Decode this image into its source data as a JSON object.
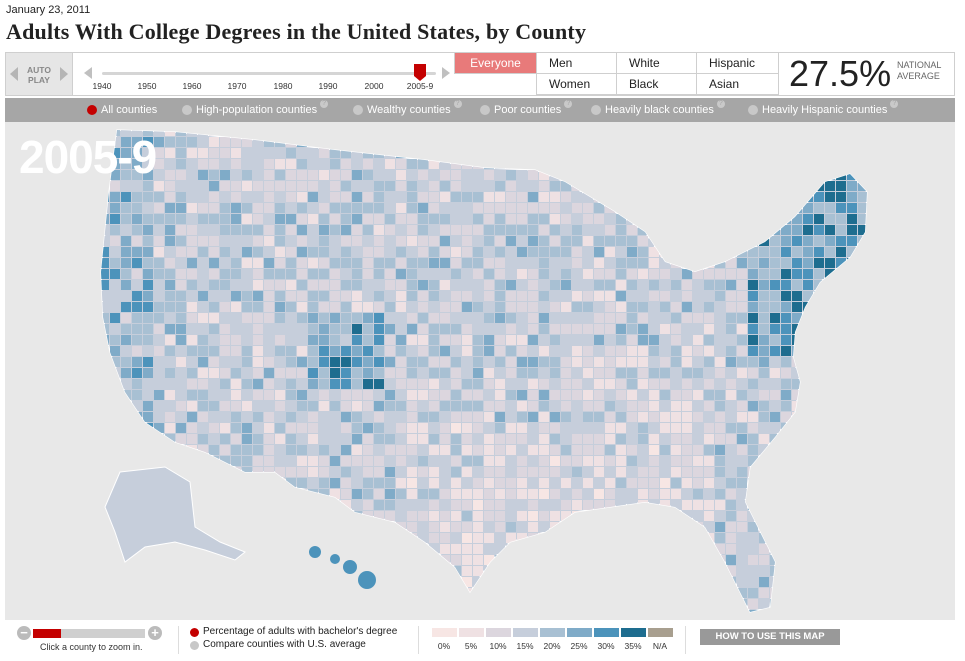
{
  "date": "January 23, 2011",
  "title": "Adults With College Degrees in the United States, by County",
  "autoplay_label": "AUTO PLAY",
  "timeline": {
    "years": [
      "1940",
      "1950",
      "1960",
      "1970",
      "1980",
      "1990",
      "2000",
      "2005-9"
    ],
    "selected": "2005-9"
  },
  "groups": [
    {
      "label": "Everyone",
      "active": true
    },
    {
      "label": "Men",
      "active": false
    },
    {
      "label": "Women",
      "active": false
    },
    {
      "label": "White",
      "active": false
    },
    {
      "label": "Black",
      "active": false
    },
    {
      "label": "Hispanic",
      "active": false
    },
    {
      "label": "Asian",
      "active": false
    }
  ],
  "national": {
    "value": "27.5%",
    "label": "NATIONAL AVERAGE"
  },
  "filters": [
    {
      "label": "All counties",
      "selected": true,
      "help": false
    },
    {
      "label": "High-population counties",
      "selected": false,
      "help": true
    },
    {
      "label": "Wealthy counties",
      "selected": false,
      "help": true
    },
    {
      "label": "Poor counties",
      "selected": false,
      "help": true
    },
    {
      "label": "Heavily black counties",
      "selected": false,
      "help": true
    },
    {
      "label": "Heavily Hispanic counties",
      "selected": false,
      "help": true
    }
  ],
  "map": {
    "year_label": "2005-9"
  },
  "zoom": {
    "help_text": "Click a county to zoom in.",
    "level": 0.2
  },
  "legend": {
    "series_label": "Percentage of adults with bachelor's degree",
    "compare_label": "Compare counties with U.S. average",
    "series_color": "#c40000",
    "compare_color": "#c8c8c8",
    "bins": [
      {
        "label": "0%",
        "color": "#f7e6e4"
      },
      {
        "label": "5%",
        "color": "#efe1e3"
      },
      {
        "label": "10%",
        "color": "#dcd6de"
      },
      {
        "label": "15%",
        "color": "#c6cedb"
      },
      {
        "label": "20%",
        "color": "#a8c0d3"
      },
      {
        "label": "25%",
        "color": "#7fabc8"
      },
      {
        "label": "30%",
        "color": "#4c93bb"
      },
      {
        "label": "35%",
        "color": "#1e6d8f"
      },
      {
        "label": "N/A",
        "color": "#a89f8f"
      }
    ]
  },
  "howto_label": "HOW TO USE THIS MAP",
  "colors": {
    "accent": "#c40000",
    "active_group": "#e87a7a",
    "filter_bar": "#a6a6a6",
    "map_bg": "#e8e8e8"
  }
}
